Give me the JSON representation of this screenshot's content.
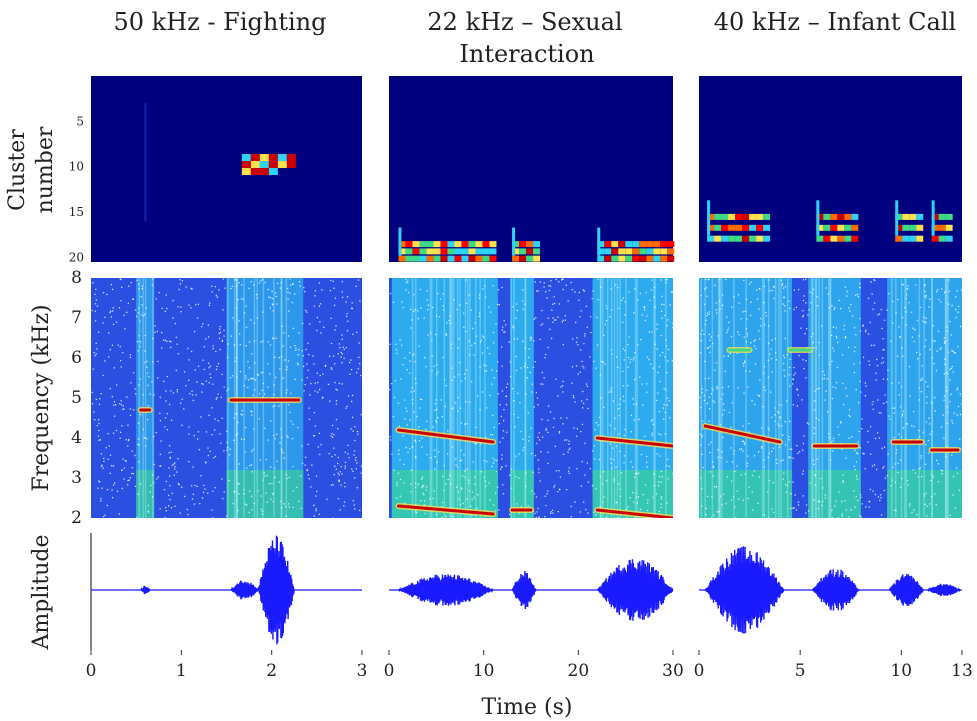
{
  "chart_data": [
    {
      "type": "heatmap",
      "title": "50 kHz - Fighting",
      "panel": "cluster",
      "ylabel": "Cluster number",
      "y_ticks": [
        "5",
        "10",
        "15",
        "20"
      ],
      "xlim": [
        0,
        3
      ],
      "ylim": [
        0,
        20
      ],
      "blocks": [
        [
          1.7,
          9.5
        ],
        [
          1.8,
          10
        ],
        [
          1.9,
          9.5
        ],
        [
          2.0,
          10
        ],
        [
          2.1,
          9.5
        ],
        [
          1.75,
          10.5
        ],
        [
          1.95,
          10.5
        ]
      ],
      "colors": {
        "background": "#00007f",
        "high": "#cc0000",
        "mid": "#ffd700",
        "low": "#00ffff"
      }
    },
    {
      "type": "heatmap",
      "title": "22 kHz – Sexual Interaction",
      "panel": "cluster",
      "xlim": [
        0,
        30
      ],
      "ylim": [
        0,
        20
      ],
      "segments": [
        [
          1,
          11
        ],
        [
          13,
          15.5
        ],
        [
          22,
          30
        ]
      ],
      "cluster_band": [
        17,
        20
      ]
    },
    {
      "type": "heatmap",
      "title": "40 kHz – Infant Call",
      "panel": "cluster",
      "xlim": [
        0,
        13
      ],
      "ylim": [
        0,
        20
      ],
      "segments": [
        [
          0.4,
          3.3
        ],
        [
          5.8,
          7.8
        ],
        [
          9.7,
          11.1
        ],
        [
          11.5,
          12.5
        ]
      ],
      "cluster_band": [
        14,
        19
      ]
    },
    {
      "type": "heatmap",
      "panel": "spectrogram",
      "ylabel": "Frequency (kHz)",
      "y_ticks": [
        "2",
        "3",
        "4",
        "5",
        "6",
        "7",
        "8"
      ],
      "ylim": [
        2,
        8
      ],
      "xlim": [
        0,
        3
      ],
      "calls": [
        {
          "x": [
            0.55,
            0.65
          ],
          "f": 4.7
        },
        {
          "x": [
            1.55,
            2.3
          ],
          "f": 4.95
        }
      ]
    },
    {
      "type": "heatmap",
      "panel": "spectrogram",
      "ylim": [
        2,
        8
      ],
      "xlim": [
        0,
        30
      ],
      "calls": [
        {
          "x": [
            1,
            11
          ],
          "f": [
            2.3,
            2.1
          ]
        },
        {
          "x": [
            1,
            11
          ],
          "f": [
            4.2,
            3.9
          ]
        },
        {
          "x": [
            13,
            15
          ],
          "f": 2.2
        },
        {
          "x": [
            22,
            30
          ],
          "f": [
            2.2,
            2.0
          ]
        },
        {
          "x": [
            22,
            30
          ],
          "f": [
            4.0,
            3.8
          ]
        }
      ]
    },
    {
      "type": "heatmap",
      "panel": "spectrogram",
      "ylim": [
        2,
        8
      ],
      "xlim": [
        0,
        13
      ],
      "calls": [
        {
          "x": [
            0.3,
            4
          ],
          "f": [
            4.3,
            3.9
          ]
        },
        {
          "x": [
            5.7,
            7.8
          ],
          "f": 3.8
        },
        {
          "x": [
            9.6,
            11.0
          ],
          "f": 3.9
        },
        {
          "x": [
            11.5,
            12.8
          ],
          "f": 3.7
        },
        {
          "x": [
            1.5,
            2.5
          ],
          "f": 6.2
        },
        {
          "x": [
            4.5,
            5.5
          ],
          "f": 6.2
        }
      ]
    },
    {
      "type": "line",
      "panel": "amplitude",
      "ylabel": "Amplitude",
      "x_ticks": [
        "0",
        "1",
        "2",
        "3"
      ],
      "xlim": [
        0,
        3
      ],
      "bursts": [
        {
          "x": [
            0.55,
            0.65
          ],
          "amp": 0.08
        },
        {
          "x": [
            1.55,
            1.85
          ],
          "amp": 0.2
        },
        {
          "x": [
            1.85,
            2.25
          ],
          "amp": 1.0
        }
      ]
    },
    {
      "type": "line",
      "panel": "amplitude",
      "x_ticks": [
        "0",
        "10",
        "20",
        "30"
      ],
      "xlim": [
        0,
        30
      ],
      "bursts": [
        {
          "x": [
            1,
            11
          ],
          "amp": 0.3
        },
        {
          "x": [
            13,
            15.5
          ],
          "amp": 0.35
        },
        {
          "x": [
            22,
            30
          ],
          "amp": 0.6
        }
      ]
    },
    {
      "type": "line",
      "panel": "amplitude",
      "x_ticks": [
        "0",
        "5",
        "10",
        "13"
      ],
      "xlim": [
        0,
        13
      ],
      "bursts": [
        {
          "x": [
            0.3,
            4.2
          ],
          "amp": 0.8
        },
        {
          "x": [
            5.6,
            7.9
          ],
          "amp": 0.4
        },
        {
          "x": [
            9.4,
            11.1
          ],
          "amp": 0.3
        },
        {
          "x": [
            11.3,
            12.9
          ],
          "amp": 0.12
        }
      ]
    }
  ],
  "xlabel": "Time (s)",
  "colors": {
    "navy": "#00007f",
    "wave": "#1a1aff",
    "cyan": "#2fd3f5",
    "green": "#3ddc84",
    "yellow": "#ffe34d",
    "red": "#cc0000",
    "dot": "#ffffff"
  }
}
